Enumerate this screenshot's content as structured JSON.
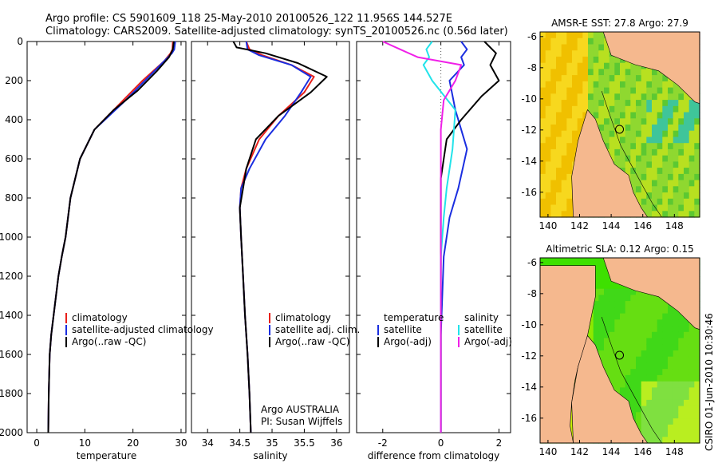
{
  "header": {
    "line1": "Argo profile: CS 5901609_118 25-May-2010 20100526_122 11.956S 144.527E",
    "line2": "Climatology: CARS2009. Satellite-adjusted climatology: synTS_20100526.nc (0.56d later)"
  },
  "credit": "CSIRO 01-Jun-2010 10:30:46",
  "colors": {
    "climatology": "#e8201a",
    "satellite": "#1a2ee0",
    "argo": "#000000",
    "cyan": "#22e3ea",
    "magenta": "#f020e8",
    "land": "#f5b88e"
  },
  "chart_data": [
    {
      "id": "temperature",
      "type": "line",
      "xlabel": "temperature",
      "ylabel": "",
      "xlim": [
        -2,
        31
      ],
      "ylim": [
        2000,
        0
      ],
      "xticks": [
        0,
        10,
        20,
        30
      ],
      "yticks": [
        0,
        200,
        400,
        600,
        800,
        1000,
        1200,
        1400,
        1600,
        1800,
        2000
      ],
      "legend": [
        "climatology",
        "satellite-adjusted climatology",
        "Argo(..raw -QC)"
      ],
      "series": [
        {
          "name": "climatology",
          "color": "#e8201a",
          "x": [
            28.3,
            28.2,
            27.8,
            26.5,
            22,
            18,
            12,
            9,
            7,
            6,
            5.2,
            4.5,
            4,
            3.5,
            3,
            2.7,
            2.5,
            2.4
          ],
          "y": [
            0,
            40,
            60,
            100,
            200,
            300,
            450,
            600,
            800,
            1000,
            1100,
            1200,
            1300,
            1400,
            1500,
            1600,
            1800,
            2000
          ]
        },
        {
          "name": "satellite",
          "color": "#1a2ee0",
          "x": [
            28.8,
            28.6,
            28.1,
            26.5,
            22.5,
            18.5,
            12,
            9,
            7,
            6,
            5.2,
            4.5,
            4,
            3.5,
            3,
            2.7,
            2.5,
            2.4
          ],
          "y": [
            0,
            40,
            60,
            100,
            200,
            300,
            450,
            600,
            800,
            1000,
            1100,
            1200,
            1300,
            1400,
            1500,
            1600,
            1800,
            2000
          ]
        },
        {
          "name": "argo",
          "color": "#000000",
          "x": [
            28.5,
            28.3,
            27.5,
            25,
            21,
            16,
            12,
            9,
            7,
            6,
            5.2,
            4.5,
            4,
            3.5,
            3,
            2.7,
            2.5,
            2.4
          ],
          "y": [
            0,
            40,
            80,
            150,
            250,
            350,
            450,
            600,
            800,
            1000,
            1100,
            1200,
            1300,
            1400,
            1500,
            1600,
            1800,
            2000
          ]
        }
      ]
    },
    {
      "id": "salinity",
      "type": "line",
      "xlabel": "salinity",
      "xlim": [
        33.75,
        36.2
      ],
      "ylim": [
        2000,
        0
      ],
      "xticks": [
        34,
        34.5,
        35,
        35.5,
        36
      ],
      "legend": [
        "climatology",
        "satellite adj. clim.",
        "Argo(..raw -QC)"
      ],
      "annotation": [
        "Argo AUSTRALIA",
        "PI: Susan Wijffels"
      ],
      "series": [
        {
          "name": "climatology",
          "color": "#e8201a",
          "x": [
            34.6,
            34.65,
            34.85,
            35.3,
            35.65,
            35.5,
            35.1,
            34.8,
            34.6,
            34.52,
            34.5,
            34.52,
            34.55,
            34.58,
            34.62,
            34.65,
            34.67
          ],
          "y": [
            0,
            40,
            70,
            120,
            180,
            260,
            380,
            500,
            650,
            750,
            850,
            1000,
            1200,
            1400,
            1600,
            1800,
            2000
          ]
        },
        {
          "name": "satellite",
          "color": "#1a2ee0",
          "x": [
            34.6,
            34.62,
            34.8,
            35.3,
            35.6,
            35.45,
            35.2,
            34.9,
            34.65,
            34.52,
            34.5,
            34.52,
            34.55,
            34.58,
            34.62,
            34.65,
            34.67
          ],
          "y": [
            0,
            40,
            70,
            120,
            180,
            260,
            380,
            500,
            650,
            750,
            850,
            1000,
            1200,
            1400,
            1600,
            1800,
            2000
          ]
        },
        {
          "name": "argo",
          "color": "#000000",
          "x": [
            34.4,
            34.45,
            34.9,
            35.4,
            35.85,
            35.6,
            35.1,
            34.75,
            34.6,
            34.55,
            34.5,
            34.52,
            34.55,
            34.58,
            34.62,
            34.65,
            34.67
          ],
          "y": [
            0,
            30,
            60,
            110,
            180,
            260,
            380,
            500,
            650,
            750,
            850,
            1000,
            1200,
            1400,
            1600,
            1800,
            2000
          ]
        }
      ]
    },
    {
      "id": "difference",
      "type": "line",
      "xlabel": "difference from climatology",
      "xlim": [
        -2.9,
        2.4
      ],
      "ylim": [
        2000,
        0
      ],
      "xticks": [
        -2,
        0,
        2
      ],
      "legend_headers": [
        "temperature",
        "salinity"
      ],
      "legend": [
        "satellite",
        "Argo(-adj)",
        "satellite",
        "Argo(-adj)"
      ],
      "series": [
        {
          "name": "temperature satellite",
          "color": "#1a2ee0",
          "x": [
            0.7,
            0.9,
            0.7,
            0.8,
            0.3,
            0.5,
            0.9,
            0.6,
            0.3,
            0.1,
            0,
            0
          ],
          "y": [
            0,
            40,
            80,
            120,
            200,
            350,
            550,
            750,
            900,
            1100,
            1500,
            2000
          ]
        },
        {
          "name": "temperature Argo(-adj)",
          "color": "#000000",
          "x": [
            1.5,
            1.9,
            1.7,
            2.0,
            1.4,
            0.7,
            0.2,
            0,
            0,
            0,
            0,
            0
          ],
          "y": [
            0,
            60,
            120,
            200,
            280,
            400,
            500,
            700,
            900,
            1100,
            1500,
            2000
          ]
        },
        {
          "name": "salinity satellite",
          "color": "#22e3ea",
          "x": [
            -0.3,
            -0.5,
            -0.4,
            -0.6,
            -0.3,
            0.5,
            0.4,
            0.2,
            0.1,
            0,
            0,
            0
          ],
          "y": [
            0,
            40,
            80,
            120,
            200,
            350,
            550,
            750,
            900,
            1100,
            1500,
            2000
          ]
        },
        {
          "name": "salinity Argo(-adj)",
          "color": "#f020e8",
          "x": [
            -2.0,
            -1.4,
            -0.8,
            0.7,
            0.5,
            0.1,
            0,
            0,
            0,
            0,
            0,
            0
          ],
          "y": [
            0,
            40,
            80,
            120,
            200,
            300,
            450,
            600,
            800,
            1000,
            1500,
            2000
          ]
        }
      ]
    },
    {
      "id": "sst-map",
      "type": "heatmap",
      "title": "AMSR-E SST: 27.8 Argo: 27.9",
      "xlim": [
        139.5,
        149.6
      ],
      "ylim": [
        -17.6,
        -5.7
      ],
      "xticks": [
        140,
        142,
        144,
        146,
        148
      ],
      "yticks": [
        -6,
        -8,
        -10,
        -12,
        -14,
        -16
      ],
      "marker": {
        "lon": 144.527,
        "lat": -11.956
      }
    },
    {
      "id": "sla-map",
      "type": "heatmap",
      "title": "Altimetric SLA: 0.12 Argo: 0.15",
      "xlim": [
        139.5,
        149.6
      ],
      "ylim": [
        -17.6,
        -5.7
      ],
      "xticks": [
        140,
        142,
        144,
        146,
        148
      ],
      "yticks": [
        -6,
        -8,
        -10,
        -12,
        -14,
        -16
      ],
      "marker": {
        "lon": 144.527,
        "lat": -11.956
      }
    }
  ]
}
